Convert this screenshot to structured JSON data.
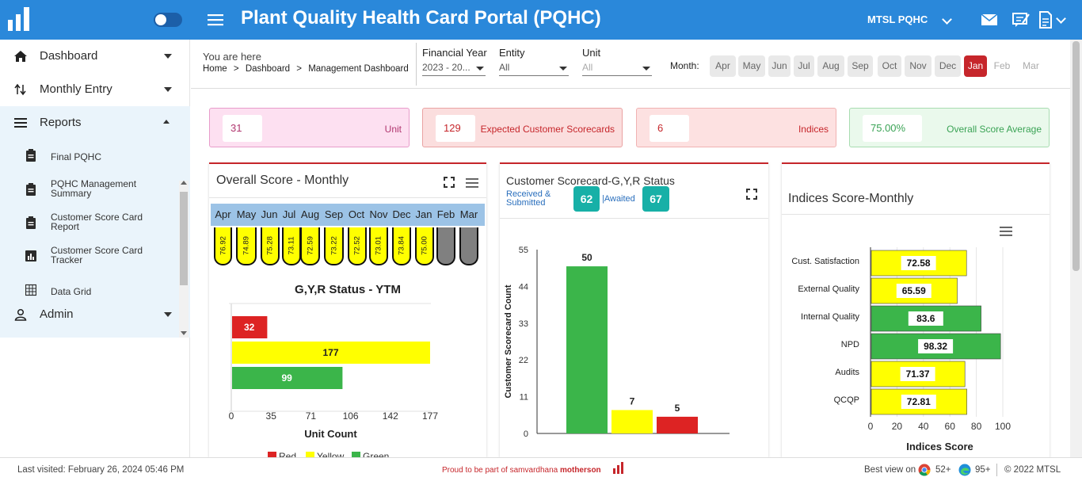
{
  "app": {
    "title": "Plant Quality Health Card Portal (PQHC)",
    "user": "MTSL PQHC"
  },
  "sidebar": {
    "items": [
      {
        "label": "Dashboard",
        "icon": "home-icon"
      },
      {
        "label": "Monthly Entry",
        "icon": "sort-arrows-icon"
      },
      {
        "label": "Reports",
        "icon": "list-icon"
      },
      {
        "label": "Admin",
        "icon": "user-icon"
      }
    ],
    "reports": [
      {
        "label": "Final PQHC",
        "icon": "clipboard-icon"
      },
      {
        "label": "PQHC Management Summary",
        "l1": "PQHC Management",
        "l2": "Summary",
        "icon": "clipboard-icon"
      },
      {
        "label": "Customer Score Card Report",
        "l1": "Customer Score Card",
        "l2": "Report",
        "icon": "clipboard-icon"
      },
      {
        "label": "Customer Score Card Tracker",
        "l1": "Customer Score Card",
        "l2": "Tracker",
        "icon": "bar-chart-icon"
      },
      {
        "label": "Data Grid",
        "icon": "grid-icon"
      }
    ]
  },
  "breadcrumb": {
    "prefix": "You are here",
    "items": [
      "Home",
      "Dashboard",
      "Management Dashboard"
    ]
  },
  "filters": {
    "financial_year": {
      "label": "Financial Year",
      "value": "2023 - 20..."
    },
    "entity": {
      "label": "Entity",
      "value": "All"
    },
    "unit": {
      "label": "Unit",
      "value": "All"
    },
    "month_label": "Month:",
    "months": [
      "Apr",
      "May",
      "Jun",
      "Jul",
      "Aug",
      "Sep",
      "Oct",
      "Nov",
      "Dec",
      "Jan",
      "Feb",
      "Mar"
    ],
    "selected_month": "Jan",
    "disabled_months": [
      "Feb",
      "Mar"
    ]
  },
  "kpis": [
    {
      "value": "31",
      "label": "Unit",
      "bg": "#fde0f1",
      "border": "#e89ccb",
      "color": "#b0366f"
    },
    {
      "value": "129",
      "label": "Expected Customer Scorecards",
      "bg": "#fbdede",
      "border": "#eaa3a3",
      "color": "#c6262b"
    },
    {
      "value": "6",
      "label": "Indices",
      "bg": "#fde1e1",
      "border": "#f0b2b2",
      "color": "#c6262b"
    },
    {
      "value": "75.00%",
      "label": "Overall Score Average",
      "bg": "#eaf9ec",
      "border": "#a8dcb1",
      "color": "#3aa355"
    }
  ],
  "overall_card": {
    "title": "Overall Score - Monthly",
    "months": [
      "Apr",
      "May",
      "Jun",
      "Jul",
      "Aug",
      "Sep",
      "Oct",
      "Nov",
      "Dec",
      "Jan",
      "Feb",
      "Mar"
    ],
    "scores": [
      "76.92",
      "74.89",
      "75.28",
      "73.11",
      "72.59",
      "73.22",
      "72.52",
      "73.01",
      "73.84",
      "75.00",
      "",
      ""
    ]
  },
  "colors": {
    "red": "#dd2323",
    "yellow": "#ffff00",
    "green": "#3bb54a",
    "grey": "#808080",
    "accent": "#2a88da",
    "teal": "#17b0a7"
  },
  "scorecard_card": {
    "title": "Customer Scorecard-G,Y,R Status",
    "received_label_1": "Received &",
    "received_label_2": "Submitted",
    "received_value": "62",
    "awaited_label": "|Awaited",
    "awaited_value": "67"
  },
  "indices_card": {
    "title": "Indices Score-Monthly"
  },
  "chart_data": [
    {
      "type": "bar",
      "orientation": "horizontal",
      "title": "G,Y,R Status - YTM",
      "categories": [
        "Red",
        "Yellow",
        "Green"
      ],
      "values": [
        32,
        177,
        99
      ],
      "colors": [
        "#dd2323",
        "#ffff00",
        "#3bb54a"
      ],
      "xlabel": "Unit Count",
      "xlim": [
        0,
        177
      ],
      "xticks": [
        "0",
        "35",
        "71",
        "106",
        "142",
        "177"
      ],
      "legend": [
        "Red",
        "Yellow",
        "Green"
      ],
      "legend_position": "bottom"
    },
    {
      "type": "bar",
      "categories": [
        "Green",
        "Yellow",
        "Red"
      ],
      "values": [
        50,
        7,
        5
      ],
      "colors": [
        "#3bb54a",
        "#ffff00",
        "#dd2323"
      ],
      "ylabel": "Customer Scorecard Count",
      "ylim": [
        0,
        55
      ],
      "yticks": [
        "0",
        "11",
        "22",
        "33",
        "44",
        "55"
      ]
    },
    {
      "type": "bar",
      "orientation": "horizontal",
      "categories": [
        "Cust. Satisfaction",
        "External Quality",
        "Internal Quality",
        "NPD",
        "Audits",
        "QCQP"
      ],
      "values": [
        72.58,
        65.59,
        83.6,
        98.32,
        71.37,
        72.81
      ],
      "labels": [
        "72.58",
        "65.59",
        "83.6",
        "98.32",
        "71.37",
        "72.81"
      ],
      "colors": [
        "#ffff00",
        "#ffff00",
        "#3bb54a",
        "#3bb54a",
        "#ffff00",
        "#ffff00"
      ],
      "xlabel": "Indices Score",
      "xlim": [
        0,
        100
      ],
      "xticks": [
        "0",
        "20",
        "40",
        "60",
        "80",
        "100"
      ]
    }
  ],
  "footer": {
    "last_visited": "Last visited: February 26, 2024 05:46 PM",
    "proud": "Proud to be part of samvardhana",
    "brand": "motherson",
    "best_view": "Best view on",
    "chrome": "52+",
    "edge": "95+",
    "copyright": "© 2022 MTSL"
  }
}
